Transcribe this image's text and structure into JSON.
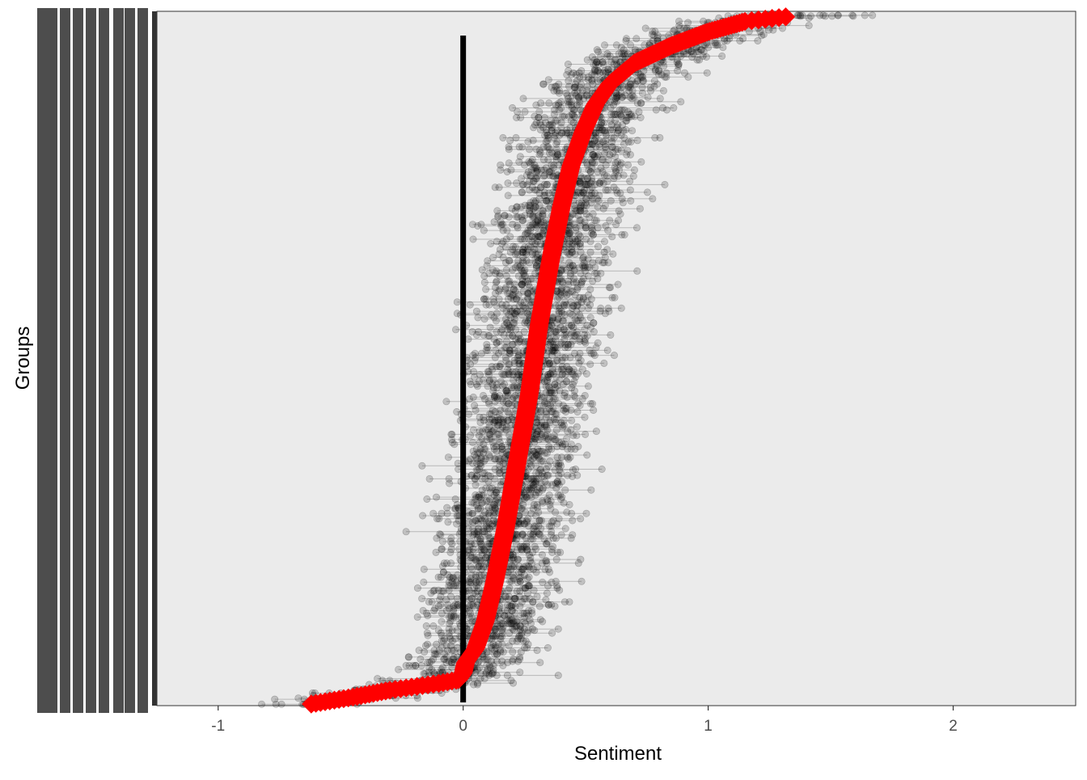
{
  "chart_data": {
    "type": "scatter",
    "title": "",
    "xlabel": "Sentiment",
    "ylabel": "Groups",
    "xlim": [
      -1.25,
      2.5
    ],
    "x_ticks": [
      -1,
      0,
      1,
      2
    ],
    "x_tick_labels": [
      "-1",
      "0",
      "1",
      "2"
    ],
    "grid": false,
    "reference_line": {
      "x": 0,
      "color": "#000000"
    },
    "series": [
      {
        "role": "points",
        "marker": "circle",
        "color": "#000000",
        "opacity": 0.2,
        "description_values": "jittered per-observation sentiment, one horizontal row per group"
      },
      {
        "role": "group_mean",
        "marker": "diamond",
        "color": "#ff0000",
        "values_by_rank": [
          [
            0.0,
            -0.62
          ],
          [
            0.01,
            -0.45
          ],
          [
            0.02,
            -0.3
          ],
          [
            0.03,
            -0.1
          ],
          [
            0.035,
            -0.02
          ],
          [
            0.045,
            0.0
          ],
          [
            0.06,
            0.01
          ],
          [
            0.08,
            0.05
          ],
          [
            0.12,
            0.09
          ],
          [
            0.18,
            0.13
          ],
          [
            0.25,
            0.17
          ],
          [
            0.35,
            0.22
          ],
          [
            0.45,
            0.27
          ],
          [
            0.55,
            0.31
          ],
          [
            0.65,
            0.36
          ],
          [
            0.72,
            0.4
          ],
          [
            0.78,
            0.44
          ],
          [
            0.83,
            0.49
          ],
          [
            0.87,
            0.54
          ],
          [
            0.9,
            0.6
          ],
          [
            0.93,
            0.7
          ],
          [
            0.955,
            0.85
          ],
          [
            0.975,
            1.0
          ],
          [
            0.99,
            1.15
          ],
          [
            1.0,
            1.4
          ]
        ]
      }
    ],
    "colors": {
      "panel_background": "#ebebeb",
      "axis_text": "#4d4d4d",
      "axis_title": "#000000",
      "mean_marker": "#ff0000",
      "point": "#000000"
    },
    "y_tick_labels_visible": false
  }
}
